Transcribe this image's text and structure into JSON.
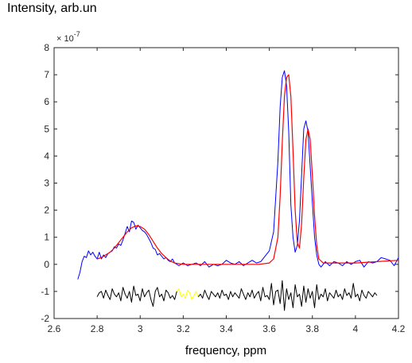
{
  "chart_data": {
    "type": "line",
    "title": "Intensity, arb.un",
    "xlabel": "frequency, ppm",
    "ylabel": "",
    "xlim": [
      2.6,
      4.2
    ],
    "ylim": [
      -2,
      8
    ],
    "y_exponent_label": "× 10",
    "y_exponent_power": "-7",
    "grid": false,
    "x_ticks": [
      2.6,
      2.8,
      3,
      3.2,
      3.4,
      3.6,
      3.8,
      4,
      4.2
    ],
    "x_tick_labels": [
      "2.6",
      "2.8",
      "3",
      "3.2",
      "3.4",
      "3.6",
      "3.8",
      "4",
      "4.2"
    ],
    "y_ticks": [
      -2,
      -1,
      0,
      1,
      2,
      3,
      4,
      5,
      6,
      7,
      8
    ],
    "y_tick_labels": [
      "-2",
      "-1",
      "0",
      "1",
      "2",
      "3",
      "4",
      "5",
      "6",
      "7",
      "8"
    ],
    "colors": {
      "measured": "#0000ff",
      "fit": "#ff0000",
      "residual": "#000000",
      "residual_highlight": "#ffff00"
    },
    "series": [
      {
        "key": "measured",
        "x": [
          2.71,
          2.72,
          2.73,
          2.74,
          2.75,
          2.76,
          2.77,
          2.78,
          2.79,
          2.8,
          2.81,
          2.82,
          2.83,
          2.84,
          2.85,
          2.86,
          2.87,
          2.88,
          2.89,
          2.9,
          2.91,
          2.92,
          2.93,
          2.94,
          2.95,
          2.96,
          2.97,
          2.98,
          2.99,
          3.0,
          3.01,
          3.02,
          3.03,
          3.04,
          3.05,
          3.06,
          3.07,
          3.08,
          3.09,
          3.1,
          3.11,
          3.12,
          3.13,
          3.14,
          3.15,
          3.16,
          3.18,
          3.2,
          3.22,
          3.24,
          3.26,
          3.28,
          3.3,
          3.32,
          3.34,
          3.36,
          3.38,
          3.4,
          3.42,
          3.44,
          3.46,
          3.48,
          3.5,
          3.52,
          3.54,
          3.56,
          3.58,
          3.6,
          3.62,
          3.64,
          3.65,
          3.66,
          3.67,
          3.68,
          3.69,
          3.7,
          3.71,
          3.72,
          3.73,
          3.74,
          3.75,
          3.76,
          3.77,
          3.78,
          3.79,
          3.8,
          3.81,
          3.82,
          3.83,
          3.84,
          3.86,
          3.88,
          3.9,
          3.92,
          3.94,
          3.96,
          3.98,
          4.0,
          4.02,
          4.04,
          4.06,
          4.08,
          4.1,
          4.12,
          4.14,
          4.16,
          4.18,
          4.2
        ],
        "y": [
          -0.55,
          -0.3,
          0.1,
          0.3,
          0.25,
          0.5,
          0.35,
          0.45,
          0.3,
          0.2,
          0.45,
          0.2,
          0.35,
          0.25,
          0.4,
          0.45,
          0.5,
          0.65,
          0.6,
          0.75,
          0.7,
          0.9,
          1.15,
          1.4,
          1.2,
          1.6,
          1.55,
          1.3,
          1.45,
          1.35,
          1.25,
          1.2,
          1.1,
          0.95,
          0.8,
          0.6,
          0.55,
          0.35,
          0.4,
          0.3,
          0.2,
          0.25,
          0.15,
          0.1,
          0.2,
          0.05,
          -0.05,
          0.05,
          -0.05,
          0.0,
          0.05,
          -0.05,
          0.1,
          -0.1,
          0.0,
          -0.05,
          0.0,
          0.15,
          0.05,
          0.0,
          0.1,
          -0.05,
          0.05,
          0.15,
          0.05,
          0.1,
          0.3,
          0.5,
          1.2,
          3.8,
          5.8,
          6.9,
          7.15,
          6.6,
          4.9,
          2.2,
          1.0,
          0.45,
          0.7,
          1.6,
          3.3,
          5.0,
          5.3,
          4.9,
          3.6,
          2.3,
          1.0,
          0.35,
          0.0,
          -0.1,
          0.1,
          -0.05,
          0.1,
          0.05,
          -0.05,
          0.1,
          0.0,
          0.1,
          0.15,
          -0.1,
          0.1,
          0.05,
          0.1,
          0.25,
          0.2,
          0.15,
          -0.05,
          0.25
        ],
        "color": "#0000ff"
      },
      {
        "key": "fit",
        "x": [
          2.8,
          2.82,
          2.84,
          2.86,
          2.88,
          2.9,
          2.92,
          2.94,
          2.96,
          2.98,
          3.0,
          3.02,
          3.04,
          3.06,
          3.08,
          3.1,
          3.12,
          3.14,
          3.16,
          3.2,
          3.3,
          3.4,
          3.5,
          3.55,
          3.6,
          3.62,
          3.64,
          3.65,
          3.66,
          3.67,
          3.68,
          3.69,
          3.7,
          3.71,
          3.72,
          3.73,
          3.74,
          3.75,
          3.76,
          3.77,
          3.78,
          3.79,
          3.8,
          3.81,
          3.82,
          3.83,
          3.85,
          3.9,
          4.0,
          4.1,
          4.2
        ],
        "y": [
          0.2,
          0.25,
          0.35,
          0.45,
          0.6,
          0.8,
          1.0,
          1.2,
          1.35,
          1.42,
          1.4,
          1.3,
          1.1,
          0.85,
          0.6,
          0.4,
          0.25,
          0.12,
          0.05,
          0.0,
          0.0,
          0.0,
          0.0,
          0.0,
          0.05,
          0.2,
          1.0,
          2.5,
          4.5,
          6.2,
          6.9,
          7.0,
          6.2,
          4.2,
          2.0,
          0.8,
          0.6,
          1.5,
          3.2,
          4.6,
          5.0,
          4.6,
          3.3,
          1.8,
          0.7,
          0.2,
          0.05,
          0.05,
          0.05,
          0.1,
          0.15
        ],
        "color": "#ff0000"
      },
      {
        "key": "residual",
        "x": [
          2.8,
          2.81,
          2.82,
          2.83,
          2.84,
          2.85,
          2.86,
          2.87,
          2.88,
          2.89,
          2.9,
          2.91,
          2.92,
          2.93,
          2.94,
          2.95,
          2.96,
          2.97,
          2.98,
          2.99,
          3.0,
          3.01,
          3.02,
          3.03,
          3.04,
          3.05,
          3.06,
          3.07,
          3.08,
          3.09,
          3.1,
          3.11,
          3.12,
          3.13,
          3.14,
          3.15,
          3.16,
          3.17,
          3.18,
          3.19,
          3.2,
          3.21,
          3.22,
          3.23,
          3.24,
          3.25,
          3.26,
          3.27,
          3.28,
          3.29,
          3.3,
          3.31,
          3.32,
          3.33,
          3.34,
          3.35,
          3.36,
          3.37,
          3.38,
          3.39,
          3.4,
          3.41,
          3.42,
          3.43,
          3.44,
          3.45,
          3.46,
          3.47,
          3.48,
          3.49,
          3.5,
          3.51,
          3.52,
          3.53,
          3.54,
          3.55,
          3.56,
          3.57,
          3.58,
          3.59,
          3.6,
          3.61,
          3.62,
          3.63,
          3.64,
          3.65,
          3.66,
          3.67,
          3.68,
          3.69,
          3.7,
          3.71,
          3.72,
          3.73,
          3.74,
          3.75,
          3.76,
          3.77,
          3.78,
          3.79,
          3.8,
          3.81,
          3.82,
          3.83,
          3.84,
          3.85,
          3.86,
          3.87,
          3.88,
          3.89,
          3.9,
          3.91,
          3.92,
          3.93,
          3.94,
          3.95,
          3.96,
          3.97,
          3.98,
          3.99,
          4.0,
          4.01,
          4.02,
          4.03,
          4.04,
          4.05,
          4.06,
          4.07,
          4.08,
          4.09,
          4.1
        ],
        "y": [
          -1.2,
          -1.05,
          -1.0,
          -1.25,
          -0.95,
          -1.15,
          -1.3,
          -0.9,
          -1.1,
          -1.2,
          -1.05,
          -1.35,
          -0.85,
          -1.1,
          -1.25,
          -1.0,
          -1.4,
          -0.8,
          -1.15,
          -1.1,
          -1.35,
          -0.9,
          -1.2,
          -1.05,
          -0.95,
          -1.3,
          -1.55,
          -1.0,
          -0.85,
          -1.2,
          -1.1,
          -1.35,
          -0.95,
          -1.05,
          -1.25,
          -1.15,
          -1.3,
          -1.0,
          -0.9,
          -1.2,
          -1.1,
          -1.25,
          -0.95,
          -1.05,
          -1.3,
          -1.15,
          -1.0,
          -1.2,
          -1.1,
          -1.25,
          -0.95,
          -1.15,
          -1.3,
          -1.0,
          -1.1,
          -1.2,
          -1.05,
          -1.25,
          -0.95,
          -1.15,
          -1.1,
          -1.3,
          -1.0,
          -1.2,
          -1.05,
          -1.15,
          -1.25,
          -0.9,
          -1.1,
          -1.3,
          -1.05,
          -1.2,
          -0.95,
          -1.25,
          -1.1,
          -1.0,
          -1.35,
          -0.85,
          -1.2,
          -1.15,
          -1.3,
          -0.7,
          -1.5,
          -1.0,
          -0.95,
          -1.45,
          -0.6,
          -1.7,
          -0.9,
          -1.3,
          -1.05,
          -1.6,
          -0.75,
          -1.2,
          -1.1,
          -1.55,
          -0.8,
          -1.4,
          -0.9,
          -1.25,
          -1.0,
          -1.6,
          -0.75,
          -1.3,
          -1.1,
          -1.2,
          -0.9,
          -1.35,
          -1.05,
          -1.15,
          -1.25,
          -0.95,
          -1.2,
          -1.1,
          -1.3,
          -0.9,
          -1.15,
          -1.05,
          -1.25,
          -0.7,
          -1.2,
          -1.1,
          -1.35,
          -0.95,
          -1.15,
          -1.25,
          -1.0,
          -1.1,
          -1.2,
          -1.05,
          -1.15
        ],
        "color": "#000000",
        "highlight_range": [
          3.17,
          3.27
        ]
      }
    ]
  }
}
